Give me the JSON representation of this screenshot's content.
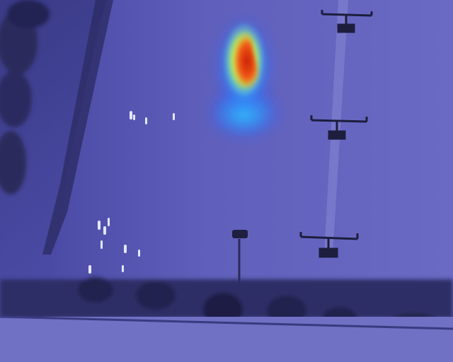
{
  "image": {
    "kind": "aerial-thermal-photo-with-heatmap-overlay",
    "palette": {
      "base": "#4a4aa8",
      "field": "#5a5ab8",
      "field_light": "#7a7ad0",
      "dark": "#26264f",
      "hot_core": "#d82a10",
      "hot_mid": "#ffd21a",
      "warm": "#4cd8ff",
      "cool": "#2fa0ff"
    }
  }
}
